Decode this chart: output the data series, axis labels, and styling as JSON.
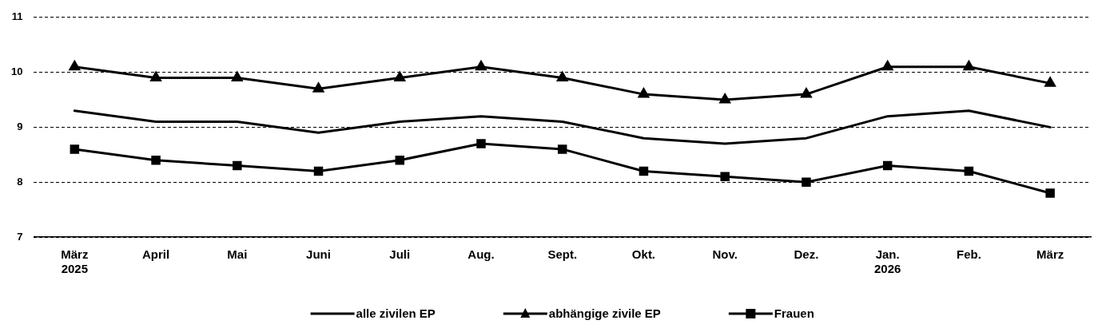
{
  "chart_data": {
    "type": "line",
    "categories": [
      "März\n2025",
      "April",
      "Mai",
      "Juni",
      "Juli",
      "Aug.",
      "Sept.",
      "Okt.",
      "Nov.",
      "Dez.",
      "Jan.\n2026",
      "Feb.",
      "März"
    ],
    "series": [
      {
        "name": "alle zivilen EP",
        "color": "#000000",
        "marker": "none",
        "values": [
          9.3,
          9.1,
          9.1,
          8.9,
          9.1,
          9.2,
          9.1,
          8.8,
          8.7,
          8.8,
          9.2,
          9.3,
          9.0
        ]
      },
      {
        "name": "abhängige zivile EP",
        "color": "#000000",
        "marker": "triangle",
        "values": [
          10.1,
          9.9,
          9.9,
          9.7,
          9.9,
          10.1,
          9.9,
          9.6,
          9.5,
          9.6,
          10.1,
          10.1,
          9.8
        ]
      },
      {
        "name": "Frauen",
        "color": "#000000",
        "marker": "square",
        "values": [
          8.6,
          8.4,
          8.3,
          8.2,
          8.4,
          8.7,
          8.6,
          8.2,
          8.1,
          8.0,
          8.3,
          8.2,
          7.8
        ]
      }
    ],
    "ylim": [
      7,
      11
    ],
    "yticks": [
      7,
      8,
      9,
      10,
      11
    ],
    "grid": "y",
    "line_style": "solid",
    "legend": "bottom"
  }
}
